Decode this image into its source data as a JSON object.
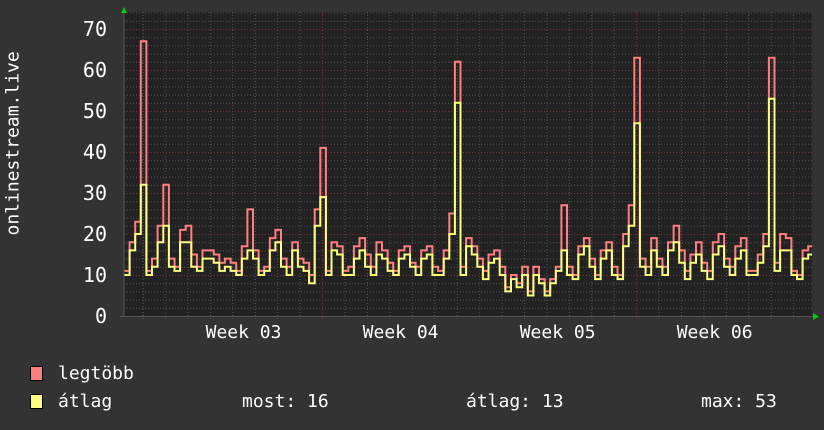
{
  "chart_data": {
    "type": "line",
    "ylabel": "onlinestream.live",
    "ylim": [
      0,
      70
    ],
    "yticks": [
      "0",
      "10",
      "20",
      "30",
      "40",
      "50",
      "60",
      "70"
    ],
    "x_unit": "days",
    "xlim": [
      0,
      30.67
    ],
    "x_step": 0.25,
    "xtick_labels": [
      "Week 03",
      "Week 04",
      "Week 05",
      "Week 06"
    ],
    "week_starts": [
      1.83,
      8.83,
      15.83,
      22.83,
      29.83
    ],
    "grid": true,
    "series": [
      {
        "name": "legtöbb",
        "color": "#ff7f7f",
        "values": [
          11,
          18,
          23,
          67,
          11,
          14,
          22,
          32,
          14,
          12,
          21,
          22,
          15,
          12,
          16,
          16,
          15,
          13,
          14,
          13,
          11,
          17,
          26,
          16,
          11,
          12,
          19,
          21,
          14,
          12,
          18,
          14,
          13,
          10,
          26,
          41,
          11,
          18,
          17,
          11,
          12,
          17,
          19,
          15,
          12,
          18,
          16,
          13,
          11,
          16,
          17,
          13,
          12,
          16,
          17,
          12,
          11,
          16,
          25,
          62,
          12,
          19,
          17,
          14,
          11,
          15,
          16,
          12,
          7,
          10,
          8,
          12,
          6,
          12,
          9,
          6,
          9,
          12,
          27,
          12,
          10,
          17,
          19,
          14,
          10,
          16,
          18,
          12,
          10,
          20,
          27,
          63,
          14,
          12,
          19,
          14,
          12,
          18,
          22,
          16,
          11,
          15,
          18,
          13,
          11,
          18,
          20,
          14,
          12,
          17,
          19,
          11,
          11,
          15,
          20,
          63,
          13,
          20,
          19,
          11,
          10,
          16,
          17
        ]
      },
      {
        "name": "átlag",
        "color": "#ffff7f",
        "values": [
          10,
          16,
          20,
          32,
          10,
          12,
          18,
          22,
          12,
          11,
          18,
          18,
          12,
          11,
          14,
          14,
          13,
          11,
          12,
          11,
          10,
          14,
          16,
          14,
          10,
          11,
          16,
          18,
          12,
          10,
          16,
          12,
          11,
          8,
          22,
          29,
          10,
          16,
          15,
          10,
          10,
          14,
          16,
          12,
          10,
          15,
          14,
          11,
          10,
          14,
          15,
          12,
          10,
          14,
          15,
          10,
          10,
          14,
          20,
          52,
          10,
          17,
          15,
          12,
          9,
          13,
          14,
          10,
          6,
          9,
          7,
          10,
          5,
          10,
          8,
          5,
          8,
          11,
          16,
          10,
          9,
          15,
          17,
          12,
          9,
          14,
          16,
          10,
          9,
          17,
          22,
          47,
          12,
          10,
          16,
          12,
          10,
          16,
          18,
          13,
          9,
          13,
          15,
          11,
          9,
          15,
          17,
          12,
          10,
          14,
          16,
          10,
          10,
          13,
          17,
          53,
          11,
          16,
          16,
          10,
          9,
          14,
          15
        ]
      }
    ],
    "legend": {
      "items": [
        {
          "label": "legtöbb",
          "color": "#ff7f7f"
        },
        {
          "label": "átlag",
          "color": "#ffff7f"
        }
      ],
      "stats": {
        "most": "most: 16",
        "atlag": "átlag: 13",
        "max": "max: 53"
      }
    },
    "colors": {
      "background": "#333333",
      "plot": "#222222",
      "major_grid": "#7a3434",
      "minor_grid": "#555555",
      "arrow": "#00cc00"
    }
  }
}
